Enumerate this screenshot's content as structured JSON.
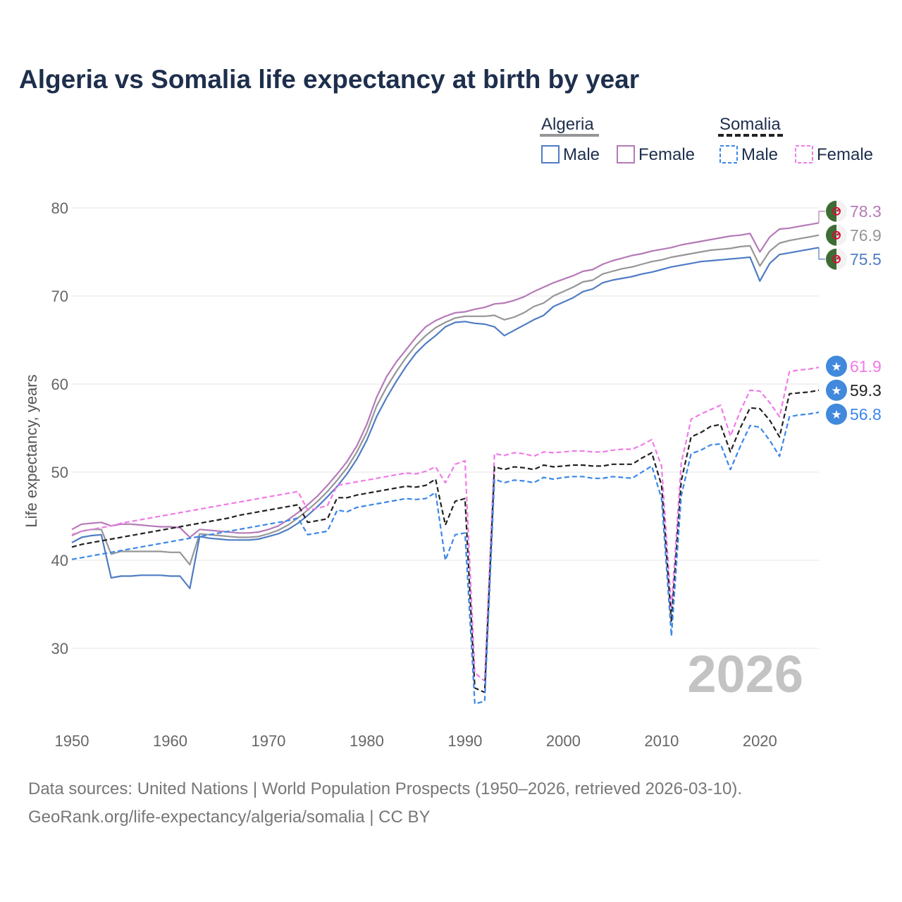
{
  "title": "Algeria vs Somalia life expectancy at birth by year",
  "source_line1": "Data sources: United Nations | World Population Prospects (1950–2026, retrieved 2026-03-10).",
  "source_line2": "GeoRank.org/life-expectancy/algeria/somalia | CC BY",
  "year_watermark": "2026",
  "legend": {
    "groups": [
      {
        "country": "Algeria",
        "male": "Male",
        "female": "Female"
      },
      {
        "country": "Somalia",
        "male": "Male",
        "female": "Female"
      }
    ]
  },
  "colors": {
    "algeria_male": "#4f7cc4",
    "algeria_female": "#b57ab8",
    "algeria_total": "#969696",
    "somalia_male": "#3b87e8",
    "somalia_female": "#f07ae8",
    "somalia_total": "#222222",
    "algeria_flag_green": "#3f6b34",
    "algeria_flag_red": "#d21034",
    "somalia_flag_blue": "#4189dd"
  },
  "chart_data": {
    "type": "line",
    "title": "Algeria vs Somalia life expectancy at birth by year",
    "xlabel": "",
    "ylabel": "Life expectancy, years",
    "xlim": [
      1950,
      2026
    ],
    "ylim": [
      22,
      82
    ],
    "xticks": [
      1950,
      1960,
      1970,
      1980,
      1990,
      2000,
      2010,
      2020
    ],
    "yticks": [
      30,
      40,
      50,
      60,
      70,
      80
    ],
    "grid": true,
    "x": [
      1950,
      1951,
      1952,
      1953,
      1954,
      1955,
      1956,
      1957,
      1958,
      1959,
      1960,
      1961,
      1962,
      1963,
      1964,
      1965,
      1966,
      1967,
      1968,
      1969,
      1970,
      1971,
      1972,
      1973,
      1974,
      1975,
      1976,
      1977,
      1978,
      1979,
      1980,
      1981,
      1982,
      1983,
      1984,
      1985,
      1986,
      1987,
      1988,
      1989,
      1990,
      1991,
      1992,
      1993,
      1994,
      1995,
      1996,
      1997,
      1998,
      1999,
      2000,
      2001,
      2002,
      2003,
      2004,
      2005,
      2006,
      2007,
      2008,
      2009,
      2010,
      2011,
      2012,
      2013,
      2014,
      2015,
      2016,
      2017,
      2018,
      2019,
      2020,
      2021,
      2022,
      2023,
      2024,
      2025,
      2026
    ],
    "series": [
      {
        "name": "Algeria Female",
        "country": "Algeria",
        "sex": "Female",
        "style": "solid",
        "end_label": "78.3",
        "values": [
          43.5,
          44.1,
          44.2,
          44.3,
          43.9,
          44.1,
          44.1,
          44.0,
          43.9,
          43.8,
          43.8,
          43.7,
          42.6,
          43.5,
          43.4,
          43.3,
          43.2,
          43.1,
          43.1,
          43.2,
          43.5,
          43.9,
          44.6,
          45.4,
          46.3,
          47.3,
          48.5,
          49.8,
          51.2,
          53.0,
          55.4,
          58.5,
          60.8,
          62.5,
          63.9,
          65.3,
          66.5,
          67.2,
          67.7,
          68.1,
          68.2,
          68.5,
          68.7,
          69.1,
          69.2,
          69.5,
          69.9,
          70.5,
          71.0,
          71.5,
          71.9,
          72.3,
          72.8,
          73.0,
          73.6,
          74.0,
          74.3,
          74.6,
          74.8,
          75.1,
          75.3,
          75.5,
          75.8,
          76.0,
          76.2,
          76.4,
          76.6,
          76.8,
          76.9,
          77.1,
          75.0,
          76.7,
          77.6,
          77.7,
          77.9,
          78.1,
          78.3
        ]
      },
      {
        "name": "Algeria Total",
        "country": "Algeria",
        "sex": "Total",
        "style": "solid",
        "end_label": "76.9",
        "values": [
          42.8,
          43.3,
          43.5,
          43.5,
          40.7,
          41.0,
          41.0,
          41.0,
          41.0,
          41.0,
          40.9,
          40.9,
          39.5,
          43.0,
          42.9,
          42.8,
          42.7,
          42.6,
          42.6,
          42.7,
          43.0,
          43.4,
          44.0,
          44.8,
          45.7,
          46.7,
          47.8,
          49.1,
          50.5,
          52.3,
          54.5,
          57.5,
          59.6,
          61.4,
          63.0,
          64.4,
          65.5,
          66.4,
          67.0,
          67.5,
          67.7,
          67.7,
          67.7,
          67.8,
          67.3,
          67.6,
          68.1,
          68.8,
          69.2,
          70.0,
          70.5,
          71.0,
          71.6,
          71.8,
          72.5,
          72.8,
          73.1,
          73.3,
          73.6,
          73.9,
          74.1,
          74.4,
          74.6,
          74.8,
          75.0,
          75.2,
          75.3,
          75.4,
          75.6,
          75.7,
          73.4,
          75.1,
          76.0,
          76.3,
          76.5,
          76.7,
          76.9
        ]
      },
      {
        "name": "Algeria Male",
        "country": "Algeria",
        "sex": "Male",
        "style": "solid",
        "end_label": "75.5",
        "values": [
          42.0,
          42.6,
          42.8,
          42.9,
          38.0,
          38.2,
          38.2,
          38.3,
          38.3,
          38.3,
          38.2,
          38.2,
          36.8,
          42.7,
          42.5,
          42.4,
          42.3,
          42.3,
          42.3,
          42.4,
          42.7,
          43.0,
          43.5,
          44.2,
          45.1,
          46.1,
          47.2,
          48.4,
          49.8,
          51.5,
          53.6,
          56.3,
          58.4,
          60.3,
          62.0,
          63.5,
          64.6,
          65.5,
          66.5,
          67.0,
          67.1,
          66.9,
          66.8,
          66.5,
          65.5,
          66.1,
          66.7,
          67.3,
          67.8,
          68.8,
          69.3,
          69.8,
          70.5,
          70.8,
          71.5,
          71.8,
          72.0,
          72.2,
          72.5,
          72.7,
          73.0,
          73.3,
          73.5,
          73.7,
          73.9,
          74.0,
          74.1,
          74.2,
          74.3,
          74.4,
          71.7,
          73.7,
          74.7,
          74.9,
          75.1,
          75.3,
          75.5
        ]
      },
      {
        "name": "Somalia Female",
        "country": "Somalia",
        "sex": "Female",
        "style": "dashed",
        "end_label": "61.9",
        "values": [
          42.9,
          43.3,
          43.5,
          43.7,
          43.9,
          44.2,
          44.4,
          44.6,
          44.8,
          45.0,
          45.2,
          45.4,
          45.6,
          45.8,
          46.0,
          46.2,
          46.4,
          46.6,
          46.8,
          47.0,
          47.2,
          47.4,
          47.6,
          47.8,
          45.7,
          45.9,
          46.2,
          48.5,
          48.7,
          48.9,
          49.1,
          49.3,
          49.5,
          49.7,
          49.9,
          49.8,
          50.1,
          50.6,
          48.8,
          50.9,
          51.3,
          27.2,
          26.3,
          52.1,
          51.9,
          52.2,
          52.1,
          51.8,
          52.3,
          52.2,
          52.3,
          52.4,
          52.4,
          52.3,
          52.3,
          52.5,
          52.6,
          52.6,
          53.1,
          53.7,
          50.7,
          34.5,
          51.0,
          56.0,
          56.6,
          57.1,
          57.6,
          54.1,
          56.9,
          59.3,
          59.2,
          57.9,
          56.3,
          61.4,
          61.6,
          61.7,
          61.9
        ]
      },
      {
        "name": "Somalia Total",
        "country": "Somalia",
        "sex": "Total",
        "style": "dashed",
        "end_label": "59.3",
        "values": [
          41.5,
          41.8,
          42.0,
          42.2,
          42.4,
          42.6,
          42.8,
          43.0,
          43.2,
          43.4,
          43.6,
          43.8,
          44.0,
          44.2,
          44.4,
          44.6,
          44.8,
          45.1,
          45.3,
          45.5,
          45.7,
          45.9,
          46.1,
          46.3,
          44.3,
          44.5,
          44.7,
          47.1,
          47.1,
          47.4,
          47.6,
          47.8,
          48.0,
          48.2,
          48.4,
          48.3,
          48.5,
          49.2,
          44.0,
          46.7,
          47.0,
          25.5,
          25.0,
          50.6,
          50.3,
          50.6,
          50.5,
          50.3,
          50.8,
          50.6,
          50.7,
          50.8,
          50.8,
          50.7,
          50.7,
          50.9,
          50.9,
          50.9,
          51.6,
          52.2,
          48.5,
          33.0,
          49.0,
          54.0,
          54.5,
          55.2,
          55.4,
          52.3,
          55.0,
          57.3,
          57.2,
          55.9,
          54.0,
          58.9,
          59.0,
          59.1,
          59.3
        ]
      },
      {
        "name": "Somalia Male",
        "country": "Somalia",
        "sex": "Male",
        "style": "dashed",
        "end_label": "56.8",
        "values": [
          40.1,
          40.3,
          40.5,
          40.7,
          40.9,
          41.1,
          41.3,
          41.5,
          41.7,
          41.9,
          42.1,
          42.3,
          42.5,
          42.7,
          42.9,
          43.1,
          43.3,
          43.5,
          43.7,
          43.9,
          44.1,
          44.3,
          44.5,
          44.8,
          42.9,
          43.1,
          43.3,
          45.7,
          45.5,
          46.0,
          46.2,
          46.4,
          46.6,
          46.8,
          47.0,
          46.9,
          47.0,
          47.7,
          40.0,
          42.9,
          43.1,
          23.7,
          24.0,
          49.2,
          48.8,
          49.1,
          49.0,
          48.8,
          49.4,
          49.2,
          49.4,
          49.5,
          49.5,
          49.3,
          49.3,
          49.5,
          49.4,
          49.3,
          50.0,
          50.7,
          47.0,
          31.4,
          47.3,
          52.1,
          52.5,
          53.1,
          53.2,
          50.3,
          52.9,
          55.3,
          55.1,
          53.6,
          51.8,
          56.3,
          56.5,
          56.6,
          56.8
        ]
      }
    ]
  }
}
